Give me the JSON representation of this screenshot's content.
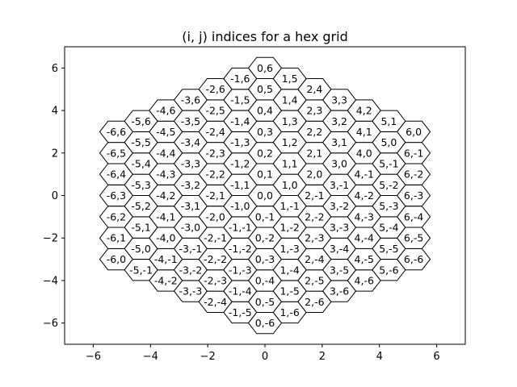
{
  "chart_data": {
    "type": "scatter",
    "title": "(i, j) indices for a hex grid",
    "xlabel": "",
    "ylabel": "",
    "xlim": [
      -7,
      7
    ],
    "ylim": [
      -7,
      7
    ],
    "xticks": [
      -6,
      -4,
      -2,
      0,
      2,
      4,
      6
    ],
    "yticks": [
      -6,
      -4,
      -2,
      0,
      2,
      4,
      6
    ],
    "xtick_labels": [
      "−6",
      "−4",
      "−2",
      "0",
      "2",
      "4",
      "6"
    ],
    "ytick_labels": [
      "−6",
      "−4",
      "−2",
      "0",
      "2",
      "4",
      "6"
    ],
    "grid": false,
    "hex_grid_radius": 6,
    "hex_size": 0.577,
    "hex_orientation": "flat-top",
    "hex_edge_color": "#000000",
    "hex_fill_color": "#ffffff"
  }
}
